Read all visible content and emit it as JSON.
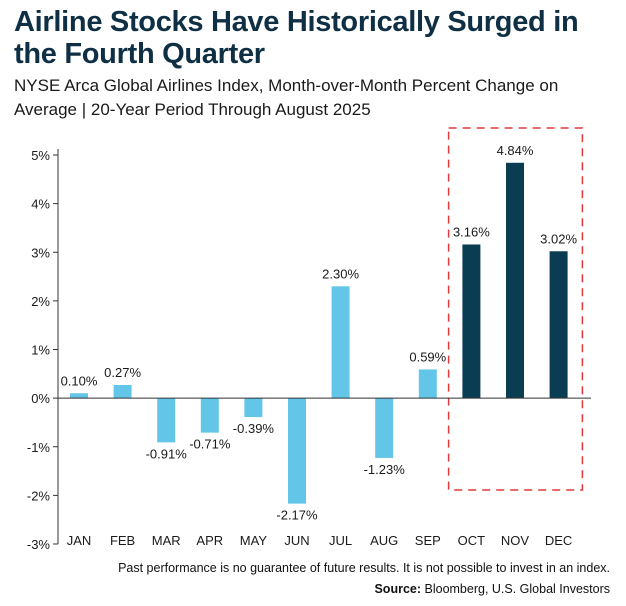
{
  "title": "Airline Stocks Have Historically Surged in the Fourth Quarter",
  "subtitle": "NYSE Arca Global Airlines Index, Month-over-Month Percent Change on Average | 20-Year Period Through August 2025",
  "footer": {
    "note": "Past performance is no guarantee of future results. It is not possible to invest in an index.",
    "source_label": "Source:",
    "source_text": "Bloomberg, U.S. Global Investors"
  },
  "colors": {
    "light_bar": "#63c5e8",
    "dark_bar": "#0a3d52",
    "highlight_box": "#e03a3a",
    "title": "#0f2f44"
  },
  "chart_data": {
    "type": "bar",
    "categories": [
      "JAN",
      "FEB",
      "MAR",
      "APR",
      "MAY",
      "JUN",
      "JUL",
      "AUG",
      "SEP",
      "OCT",
      "NOV",
      "DEC"
    ],
    "values": [
      0.1,
      0.27,
      -0.91,
      -0.71,
      -0.39,
      -2.17,
      2.3,
      -1.23,
      0.59,
      3.16,
      4.84,
      3.02
    ],
    "data_labels": [
      "0.10%",
      "0.27%",
      "-0.91%",
      "-0.71%",
      "-0.39%",
      "-2.17%",
      "2.30%",
      "-1.23%",
      "0.59%",
      "3.16%",
      "4.84%",
      "3.02%"
    ],
    "highlighted": [
      "OCT",
      "NOV",
      "DEC"
    ],
    "ylim": [
      -3,
      5
    ],
    "yticks": [
      "-3%",
      "-2%",
      "-1%",
      "0%",
      "1%",
      "2%",
      "3%",
      "4%",
      "5%"
    ],
    "grid": false,
    "legend": "none"
  }
}
